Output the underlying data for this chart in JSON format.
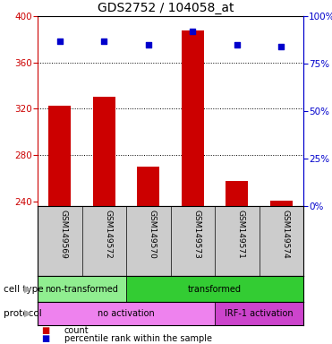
{
  "title": "GDS2752 / 104058_at",
  "samples": [
    "GSM149569",
    "GSM149572",
    "GSM149570",
    "GSM149573",
    "GSM149571",
    "GSM149574"
  ],
  "bar_values": [
    323,
    330,
    270,
    388,
    258,
    241
  ],
  "bar_bottom": 236,
  "percentile_values": [
    87,
    87,
    85,
    92,
    85,
    84
  ],
  "bar_color": "#cc0000",
  "dot_color": "#0000cc",
  "ylim_left": [
    236,
    400
  ],
  "ylim_right": [
    0,
    100
  ],
  "yticks_left": [
    240,
    280,
    320,
    360,
    400
  ],
  "yticks_right": [
    0,
    25,
    50,
    75,
    100
  ],
  "cell_type_groups": [
    {
      "label": "non-transformed",
      "start": 0,
      "end": 2,
      "color": "#90ee90"
    },
    {
      "label": "transformed",
      "start": 2,
      "end": 6,
      "color": "#33cc33"
    }
  ],
  "protocol_groups": [
    {
      "label": "no activation",
      "start": 0,
      "end": 4,
      "color": "#ee82ee"
    },
    {
      "label": "IRF-1 activation",
      "start": 4,
      "end": 6,
      "color": "#cc44cc"
    }
  ],
  "cell_type_label": "cell type",
  "protocol_label": "protocol",
  "legend_count_label": "count",
  "legend_pct_label": "percentile rank within the sample",
  "background_color": "#ffffff",
  "plot_bg_color": "#ffffff",
  "label_area_color": "#cccccc",
  "left_axis_color": "#cc0000",
  "right_axis_color": "#0000cc",
  "fig_w": 3.71,
  "fig_h": 3.84,
  "dpi": 100
}
